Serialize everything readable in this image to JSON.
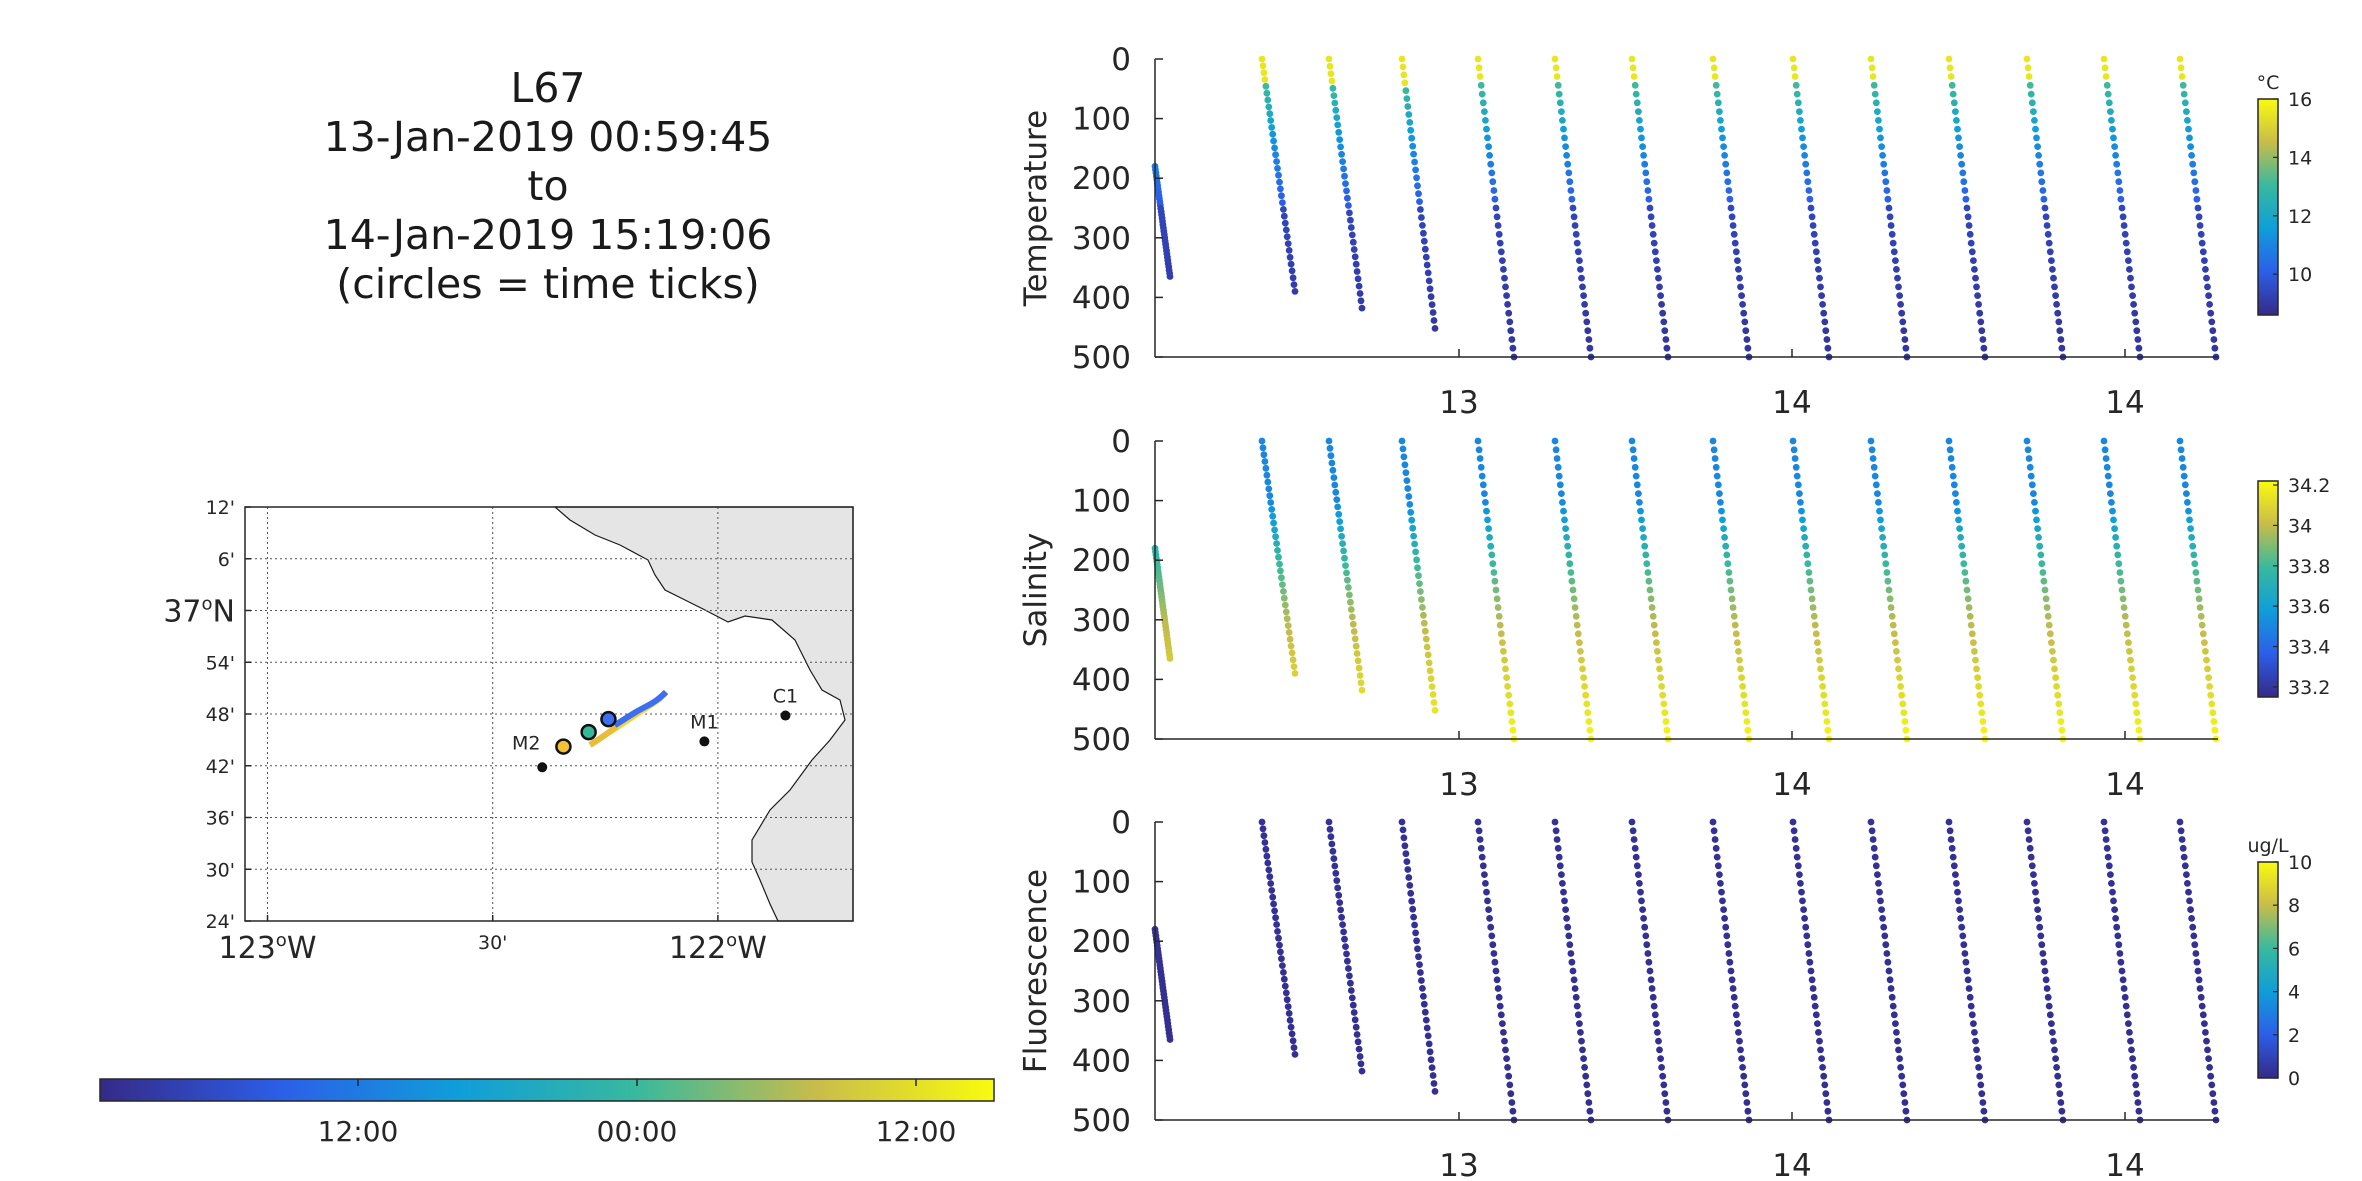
{
  "header": {
    "glider_id": "L67",
    "start_time": "13-Jan-2019 00:59:45",
    "to_label": "to",
    "end_time": "14-Jan-2019 15:19:06",
    "note": "(circles = time ticks)"
  },
  "chart_data": [
    {
      "type": "map",
      "lat_ticks": [
        "12'",
        "6'",
        "37°N",
        "54'",
        "48'",
        "42'",
        "36'",
        "30'",
        "24'"
      ],
      "lon_ticks": [
        "123°W",
        "30'",
        "122°W"
      ],
      "lat_range": [
        36.4,
        37.2
      ],
      "lon_range": [
        -123.05,
        -121.7
      ],
      "stations": [
        {
          "name": "M2",
          "lat": 36.697,
          "lon": -122.39
        },
        {
          "name": "M1",
          "lat": 36.747,
          "lon": -122.03
        },
        {
          "name": "C1",
          "lat": 36.797,
          "lon": -121.85
        }
      ],
      "time_ticks": [
        {
          "lat": 36.737,
          "lon": -122.343,
          "color": "#f5c231"
        },
        {
          "lat": 36.765,
          "lon": -122.287,
          "color": "#35b99b"
        },
        {
          "lat": 36.79,
          "lon": -122.243,
          "color": "#3d6ff0"
        }
      ],
      "coast_fill": "#e5e5e5",
      "grid": true
    },
    {
      "type": "colorbar",
      "orientation": "horizontal",
      "ticks": [
        "12:00",
        "00:00",
        "12:00"
      ],
      "colormap": "parula"
    },
    {
      "type": "scatter",
      "ylabel": "Temperature",
      "colorbar_unit": "°C",
      "colorbar_ticks": [
        "16",
        "14",
        "12",
        "10"
      ],
      "clim": [
        8.6,
        16
      ],
      "yticks": [
        "0",
        "100",
        "200",
        "300",
        "400",
        "500"
      ],
      "ylim": [
        0,
        500
      ],
      "xticks": [
        "13",
        "14",
        "14"
      ],
      "n_profiles": 14,
      "surface_value": 15.5,
      "deep_value": 9.0
    },
    {
      "type": "scatter",
      "ylabel": "Salinity",
      "colorbar_unit": "",
      "colorbar_ticks": [
        "34.2",
        "34",
        "33.8",
        "33.6",
        "33.4",
        "33.2"
      ],
      "clim": [
        33.15,
        34.22
      ],
      "yticks": [
        "0",
        "100",
        "200",
        "300",
        "400",
        "500"
      ],
      "ylim": [
        0,
        500
      ],
      "xticks": [
        "13",
        "14",
        "14"
      ],
      "n_profiles": 14,
      "surface_value": 33.5,
      "deep_value": 34.2
    },
    {
      "type": "scatter",
      "ylabel": "Fluorescence",
      "colorbar_unit": "ug/L",
      "colorbar_ticks": [
        "10",
        "8",
        "6",
        "4",
        "2",
        "0"
      ],
      "clim": [
        0,
        10
      ],
      "yticks": [
        "0",
        "100",
        "200",
        "300",
        "400",
        "500"
      ],
      "ylim": [
        0,
        500
      ],
      "xticks": [
        "13",
        "14",
        "14"
      ],
      "n_profiles": 14,
      "surface_value": 0.3,
      "deep_value": 0.2
    }
  ]
}
